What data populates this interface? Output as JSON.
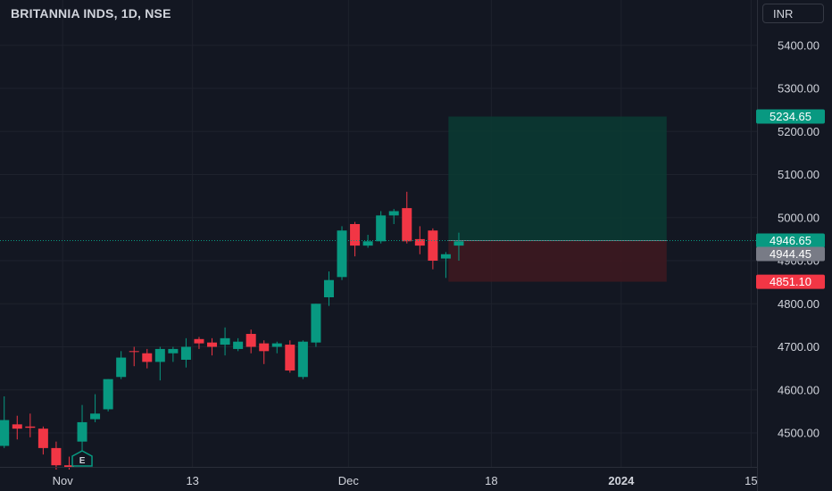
{
  "header": {
    "symbol_title": "BRITANNIA INDS, 1D, NSE",
    "currency_label": "INR"
  },
  "colors": {
    "background": "#131722",
    "up": "#089981",
    "down": "#f23645",
    "grid": "#1e222d",
    "text": "#d1d4dc",
    "profit_zone": "#0b3b33",
    "loss_zone": "#3d1820",
    "current_price_tag": "#089981",
    "last_close_tag": "#787b86",
    "target_tag": "#089981",
    "stop_tag": "#f23645"
  },
  "chart_data": {
    "type": "candlestick",
    "yaxis": {
      "ticks": [
        4500,
        4600,
        4700,
        4800,
        4900,
        5000,
        5100,
        5200,
        5300,
        5400
      ],
      "tick_labels": [
        "4500.00",
        "4600.00",
        "4700.00",
        "4800.00",
        "4900.00",
        "5000.00",
        "5100.00",
        "5200.00",
        "5300.00",
        "5400.00"
      ],
      "visible_range": [
        4420,
        5520
      ]
    },
    "xaxis": {
      "tick_labels": [
        "Nov",
        "13",
        "Dec",
        "18",
        "2024",
        "15"
      ],
      "tick_slots": [
        4,
        14,
        26,
        37,
        47,
        57
      ]
    },
    "candles": [
      {
        "slot": -0.5,
        "o": 4470,
        "h": 4585,
        "l": 4465,
        "c": 4530
      },
      {
        "slot": 0.5,
        "o": 4520,
        "h": 4540,
        "l": 4485,
        "c": 4510
      },
      {
        "slot": 1.5,
        "o": 4515,
        "h": 4545,
        "l": 4490,
        "c": 4512
      },
      {
        "slot": 2.5,
        "o": 4510,
        "h": 4515,
        "l": 4450,
        "c": 4465
      },
      {
        "slot": 3.5,
        "o": 4465,
        "h": 4480,
        "l": 4415,
        "c": 4425
      },
      {
        "slot": 4.5,
        "o": 4425,
        "h": 4445,
        "l": 4415,
        "c": 4420
      },
      {
        "slot": 5.5,
        "o": 4480,
        "h": 4565,
        "l": 4455,
        "c": 4525
      },
      {
        "slot": 6.5,
        "o": 4532,
        "h": 4590,
        "l": 4525,
        "c": 4545
      },
      {
        "slot": 7.5,
        "o": 4555,
        "h": 4625,
        "l": 4550,
        "c": 4625
      },
      {
        "slot": 8.5,
        "o": 4630,
        "h": 4690,
        "l": 4625,
        "c": 4675
      },
      {
        "slot": 9.5,
        "o": 4690,
        "h": 4700,
        "l": 4655,
        "c": 4688
      },
      {
        "slot": 10.5,
        "o": 4685,
        "h": 4695,
        "l": 4650,
        "c": 4665
      },
      {
        "slot": 11.5,
        "o": 4665,
        "h": 4700,
        "l": 4622,
        "c": 4695
      },
      {
        "slot": 12.5,
        "o": 4685,
        "h": 4700,
        "l": 4665,
        "c": 4695
      },
      {
        "slot": 13.5,
        "o": 4670,
        "h": 4720,
        "l": 4652,
        "c": 4700
      },
      {
        "slot": 14.5,
        "o": 4718,
        "h": 4723,
        "l": 4695,
        "c": 4708
      },
      {
        "slot": 15.5,
        "o": 4710,
        "h": 4720,
        "l": 4680,
        "c": 4700
      },
      {
        "slot": 16.5,
        "o": 4705,
        "h": 4745,
        "l": 4680,
        "c": 4720
      },
      {
        "slot": 17.5,
        "o": 4695,
        "h": 4720,
        "l": 4690,
        "c": 4712
      },
      {
        "slot": 18.5,
        "o": 4730,
        "h": 4740,
        "l": 4685,
        "c": 4700
      },
      {
        "slot": 19.5,
        "o": 4708,
        "h": 4715,
        "l": 4660,
        "c": 4690
      },
      {
        "slot": 20.5,
        "o": 4700,
        "h": 4712,
        "l": 4685,
        "c": 4708
      },
      {
        "slot": 21.5,
        "o": 4705,
        "h": 4715,
        "l": 4640,
        "c": 4645
      },
      {
        "slot": 22.5,
        "o": 4630,
        "h": 4715,
        "l": 4625,
        "c": 4712
      },
      {
        "slot": 23.5,
        "o": 4710,
        "h": 4800,
        "l": 4700,
        "c": 4800
      },
      {
        "slot": 24.5,
        "o": 4815,
        "h": 4875,
        "l": 4795,
        "c": 4855
      },
      {
        "slot": 25.5,
        "o": 4862,
        "h": 4980,
        "l": 4855,
        "c": 4970
      },
      {
        "slot": 26.5,
        "o": 4985,
        "h": 4990,
        "l": 4910,
        "c": 4935
      },
      {
        "slot": 27.5,
        "o": 4935,
        "h": 4960,
        "l": 4930,
        "c": 4945
      },
      {
        "slot": 28.5,
        "o": 4945,
        "h": 5015,
        "l": 4940,
        "c": 5005
      },
      {
        "slot": 29.5,
        "o": 5005,
        "h": 5020,
        "l": 4985,
        "c": 5015
      },
      {
        "slot": 30.5,
        "o": 5022,
        "h": 5060,
        "l": 4940,
        "c": 4945
      },
      {
        "slot": 31.5,
        "o": 4950,
        "h": 4980,
        "l": 4915,
        "c": 4935
      },
      {
        "slot": 32.5,
        "o": 4970,
        "h": 4975,
        "l": 4880,
        "c": 4900
      },
      {
        "slot": 33.5,
        "o": 4905,
        "h": 4920,
        "l": 4860,
        "c": 4915
      },
      {
        "slot": 34.5,
        "o": 4935,
        "h": 4965,
        "l": 4900,
        "c": 4945
      }
    ],
    "position": {
      "type": "long",
      "entry": 4946.65,
      "target": 5234.65,
      "stop": 4851.1,
      "start_slot": 33.7,
      "end_slot": 50.5
    },
    "price_labels": {
      "target": "5234.65",
      "current": "4946.65",
      "last_close": "4944.45",
      "stop": "4851.10"
    },
    "current_price": 4946.65,
    "earnings_marker": {
      "slot": 5.5,
      "label": "E"
    }
  }
}
